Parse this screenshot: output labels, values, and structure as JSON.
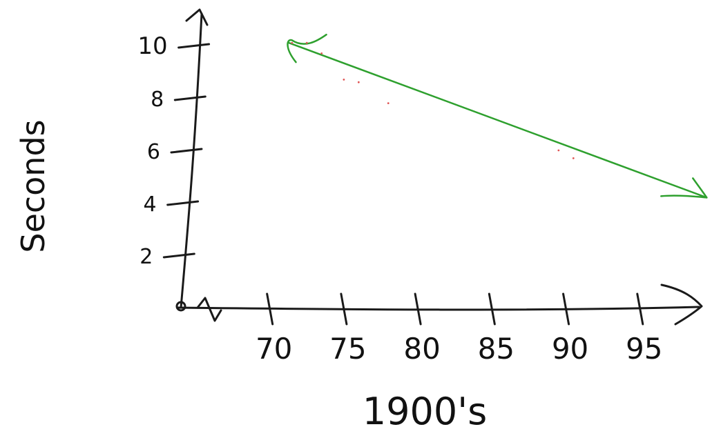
{
  "chart_data": {
    "type": "line",
    "xlabel": "1900's",
    "ylabel": "Seconds",
    "x_ticks": [
      70,
      75,
      80,
      85,
      90,
      95
    ],
    "y_ticks": [
      2,
      4,
      6,
      8,
      10
    ],
    "xlim": [
      64,
      100
    ],
    "ylim": [
      0,
      11
    ],
    "grid": false,
    "colors": {
      "axes": "#1a1a1a",
      "trend": "#2ea02e",
      "points": "#e05555"
    },
    "series": [
      {
        "type": "line",
        "x": [
          71.3,
          99.5
        ],
        "y": [
          10.1,
          4.2
        ]
      },
      {
        "type": "scatter",
        "x": [
          71.5,
          72.5,
          73.5,
          75.0,
          76.0,
          78.0,
          89.5,
          90.5
        ],
        "y": [
          10.1,
          10.1,
          9.7,
          8.7,
          8.6,
          7.8,
          6.0,
          5.7
        ]
      }
    ]
  }
}
